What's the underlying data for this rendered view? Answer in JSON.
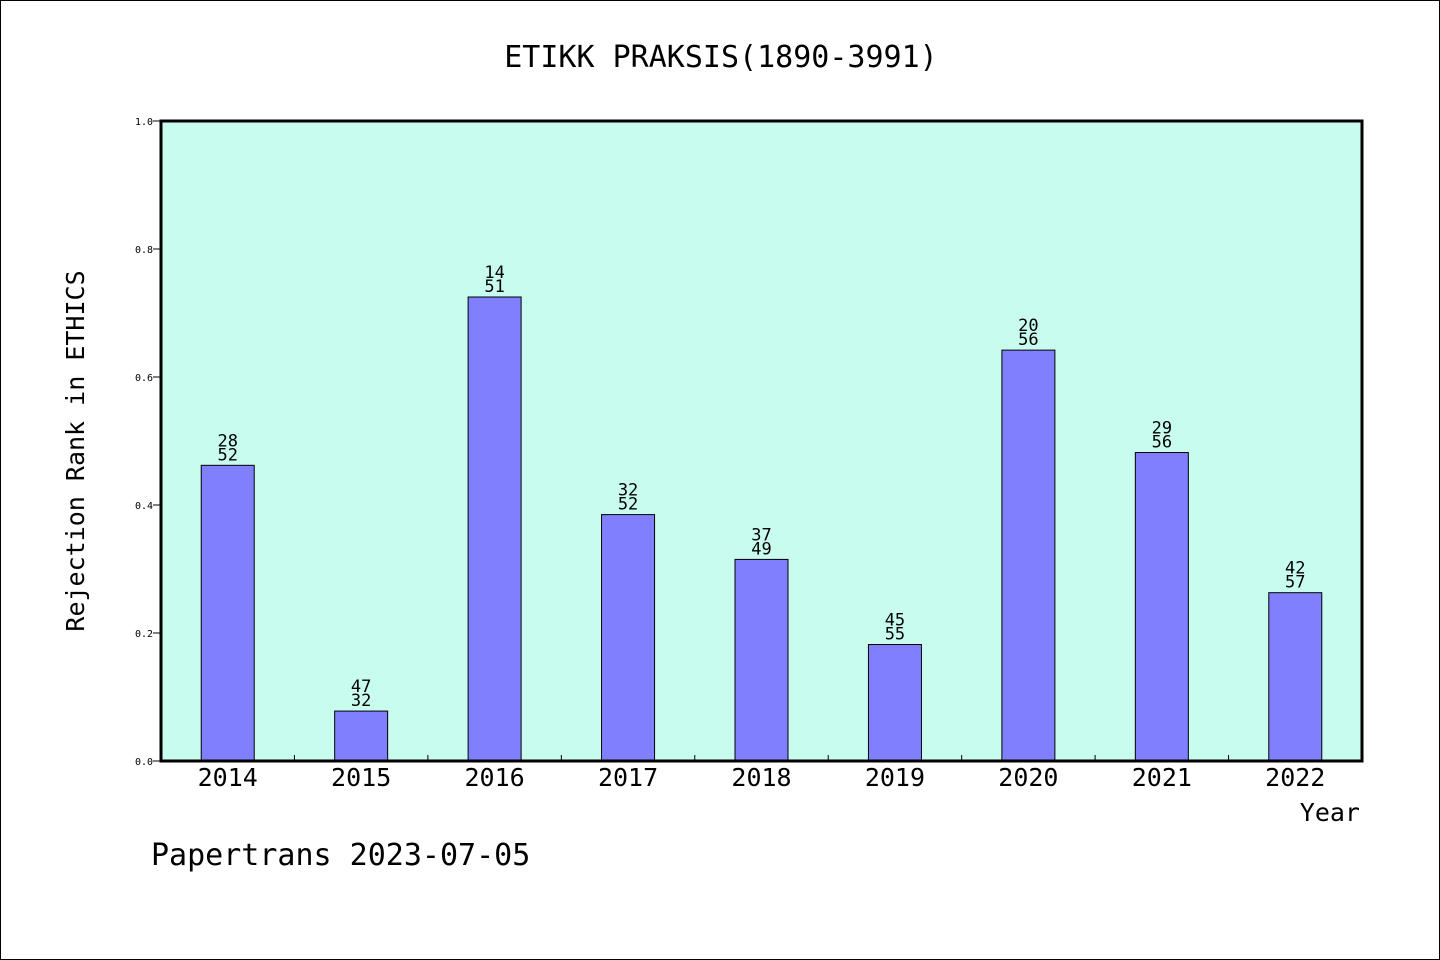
{
  "chart_data": {
    "type": "bar",
    "title": "ETIKK PRAKSIS(1890-3991)",
    "xlabel": "Year",
    "ylabel": "Rejection Rank in ETHICS",
    "ylim": [
      0.0,
      1.0
    ],
    "yticks": [
      "0.0",
      "0.2",
      "0.4",
      "0.6",
      "0.8",
      "1.0"
    ],
    "categories": [
      "2014",
      "2015",
      "2016",
      "2017",
      "2018",
      "2019",
      "2020",
      "2021",
      "2022"
    ],
    "values": [
      0.462,
      0.078,
      0.725,
      0.385,
      0.315,
      0.182,
      0.642,
      0.482,
      0.263
    ],
    "bar_labels": [
      [
        "28",
        "52"
      ],
      [
        "47",
        "32"
      ],
      [
        "14",
        "51"
      ],
      [
        "32",
        "52"
      ],
      [
        "37",
        "49"
      ],
      [
        "45",
        "55"
      ],
      [
        "20",
        "56"
      ],
      [
        "29",
        "56"
      ],
      [
        "42",
        "57"
      ]
    ],
    "grid": false,
    "colors": {
      "plot_background": "#c8fcef",
      "bar": "#8080ff",
      "bar_edge": "#000000"
    }
  },
  "footer": {
    "text": "Papertrans 2023-07-05"
  }
}
